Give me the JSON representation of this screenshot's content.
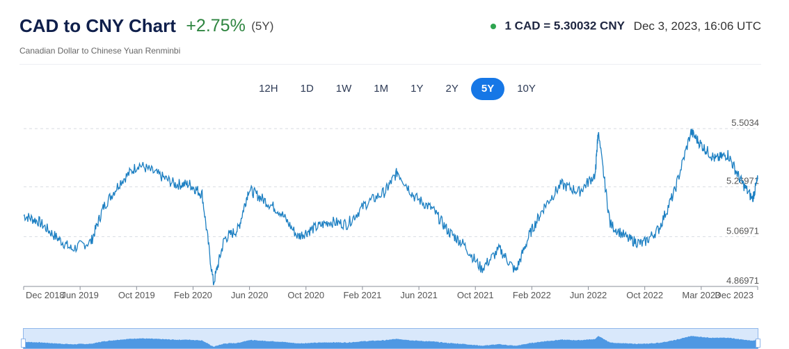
{
  "header": {
    "title": "CAD to CNY Chart",
    "change": "+2.75%",
    "period": "(5Y)",
    "subtitle": "Canadian Dollar to Chinese Yuan Renminbi",
    "rate": "1 CAD = 5.30032 CNY",
    "timestamp": "Dec 3, 2023, 16:06 UTC"
  },
  "ranges": [
    "12H",
    "1D",
    "1W",
    "1M",
    "1Y",
    "2Y",
    "5Y",
    "10Y"
  ],
  "active_range": "5Y",
  "colors": {
    "line": "#1c7fc2",
    "accent": "#1677e6",
    "positive": "#2e8540",
    "navigator_fill": "#3e8fe0"
  },
  "chart_data": {
    "type": "line",
    "title": "",
    "xlabel": "",
    "ylabel": "",
    "ylim": [
      4.86971,
      5.5034
    ],
    "y_ticks": [
      "5.5034",
      "5.26971",
      "5.06971",
      "4.86971"
    ],
    "x_tick_labels": [
      "Dec 2018",
      "Jun 2019",
      "Oct 2019",
      "Feb 2020",
      "Jun 2020",
      "Oct 2020",
      "Feb 2021",
      "Jun 2021",
      "Oct 2021",
      "Feb 2022",
      "Jun 2022",
      "Oct 2022",
      "Mar 2023",
      "Dec 2023"
    ],
    "grid": true,
    "series": [
      {
        "name": "",
        "x": [
          "2018-12-03",
          "2019-01-10",
          "2019-02-20",
          "2019-04-01",
          "2019-05-20",
          "2019-06-20",
          "2019-08-01",
          "2019-09-15",
          "2019-11-01",
          "2019-12-15",
          "2020-01-20",
          "2020-02-20",
          "2020-03-19",
          "2020-04-15",
          "2020-05-20",
          "2020-06-15",
          "2020-07-20",
          "2020-09-01",
          "2020-10-15",
          "2020-11-20",
          "2021-01-01",
          "2021-02-15",
          "2021-04-01",
          "2021-05-20",
          "2021-06-20",
          "2021-08-01",
          "2021-09-15",
          "2021-10-25",
          "2021-12-01",
          "2022-01-15",
          "2022-03-01",
          "2022-04-10",
          "2022-05-15",
          "2022-06-20",
          "2022-08-01",
          "2022-09-15",
          "2022-10-25",
          "2022-11-01",
          "2022-12-01",
          "2023-01-15",
          "2023-02-20",
          "2023-04-01",
          "2023-05-10",
          "2023-06-20",
          "2023-07-20",
          "2023-08-20",
          "2023-09-20",
          "2023-10-20",
          "2023-11-20",
          "2023-12-03"
        ],
        "y": [
          5.155,
          5.13,
          5.07,
          5.02,
          5.05,
          5.19,
          5.29,
          5.36,
          5.32,
          5.28,
          5.28,
          5.24,
          4.88,
          5.06,
          5.1,
          5.26,
          5.22,
          5.17,
          5.07,
          5.1,
          5.13,
          5.12,
          5.2,
          5.25,
          5.33,
          5.23,
          5.18,
          5.09,
          5.04,
          4.94,
          5.02,
          4.93,
          5.08,
          5.19,
          5.28,
          5.25,
          5.32,
          5.49,
          5.12,
          5.06,
          5.04,
          5.1,
          5.25,
          5.49,
          5.43,
          5.38,
          5.4,
          5.3,
          5.22,
          5.3
        ]
      }
    ]
  }
}
